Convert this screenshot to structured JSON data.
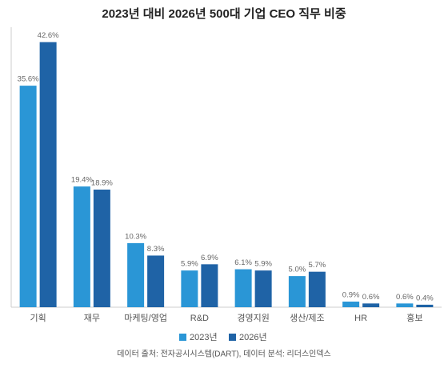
{
  "chart_data": {
    "type": "bar",
    "title": "2023년 대비 2026년 500대 기업 CEO 직무 비중",
    "categories": [
      "기획",
      "재무",
      "마케팅/영업",
      "R&D",
      "경영지원",
      "생산/제조",
      "HR",
      "홍보"
    ],
    "series": [
      {
        "name": "2023년",
        "color": "#2a96d6",
        "values": [
          35.6,
          19.4,
          10.3,
          5.9,
          6.1,
          5.0,
          0.9,
          0.6
        ],
        "value_labels": [
          "35.6%",
          "19.4%",
          "10.3%",
          "5.9%",
          "6.1%",
          "5.0%",
          "0.9%",
          "0.6%"
        ]
      },
      {
        "name": "2026년",
        "color": "#1f63a6",
        "values": [
          42.6,
          18.9,
          8.3,
          6.9,
          5.9,
          5.7,
          0.6,
          0.4
        ],
        "value_labels": [
          "42.6%",
          "18.9%",
          "8.3%",
          "6.9%",
          "5.9%",
          "5.7%",
          "0.6%",
          "0.4%"
        ]
      }
    ],
    "ylim": [
      0,
      45
    ],
    "source": "데이터 출처: 전자공시시스템(DART), 데이터 분석: 리더스인덱스"
  }
}
